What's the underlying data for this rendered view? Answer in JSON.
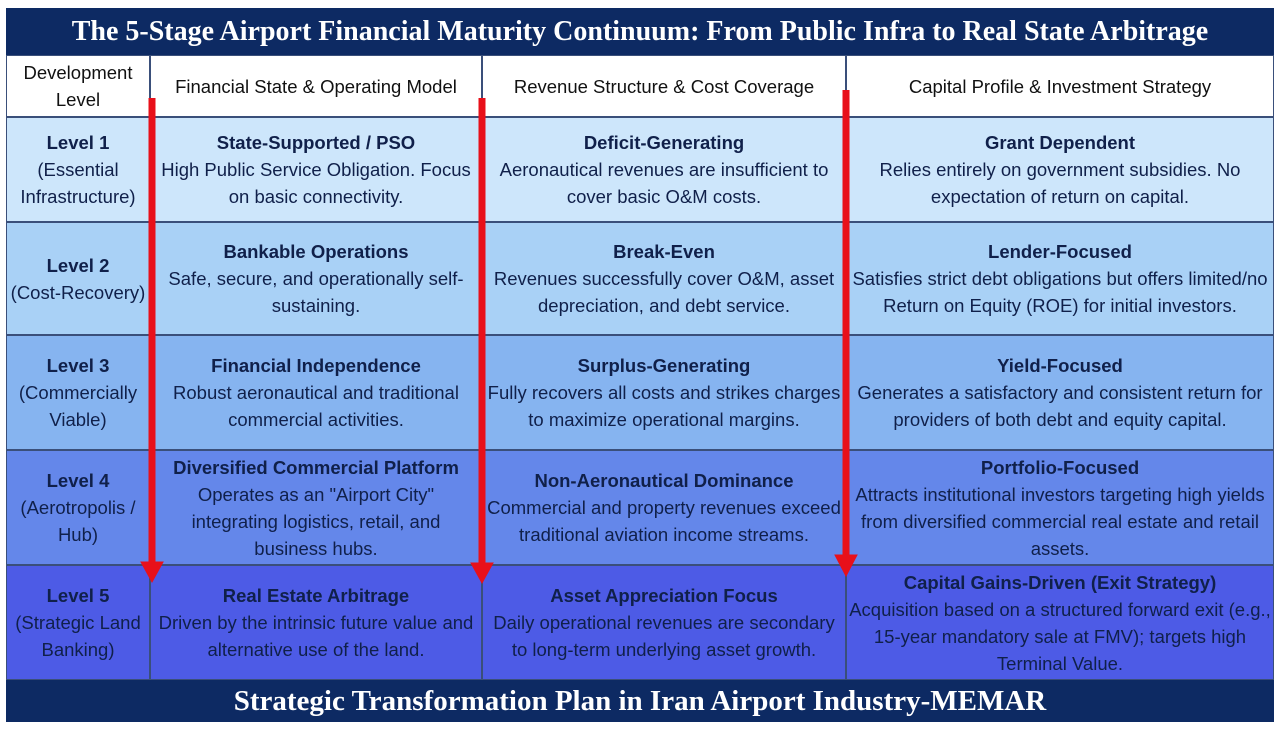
{
  "header": {
    "title": "The 5-Stage Airport Financial Maturity Continuum: From Public Infra to Real State Arbitrage"
  },
  "table": {
    "columns": [
      "Development Level",
      "Financial State & Operating Model",
      "Revenue Structure & Cost Coverage",
      "Capital Profile & Investment Strategy"
    ],
    "rows": [
      {
        "level": "Level 1",
        "stage": "(Essential Infrastructure)",
        "cells": [
          {
            "heading": "State-Supported / PSO",
            "text": "High Public Service Obligation. Focus on basic connectivity."
          },
          {
            "heading": "Deficit-Generating",
            "text": "Aeronautical revenues are insufficient to cover basic O&M costs."
          },
          {
            "heading": "Grant Dependent",
            "text": "Relies entirely on government subsidies. No expectation of return on capital."
          }
        ]
      },
      {
        "level": "Level 2",
        "stage": "(Cost-Recovery)",
        "cells": [
          {
            "heading": "Bankable Operations",
            "text": "Safe, secure, and operationally self-sustaining."
          },
          {
            "heading": "Break-Even",
            "text": "Revenues successfully cover O&M, asset depreciation, and debt service."
          },
          {
            "heading": "Lender-Focused",
            "text": "Satisfies strict debt obligations but offers limited/no Return on Equity (ROE) for initial investors."
          }
        ]
      },
      {
        "level": "Level 3",
        "stage": "(Commercially Viable)",
        "cells": [
          {
            "heading": "Financial Independence",
            "text": "Robust aeronautical and traditional commercial activities."
          },
          {
            "heading": "Surplus-Generating",
            "text": "Fully recovers all costs and strikes charges to maximize operational margins."
          },
          {
            "heading": "Yield-Focused",
            "text": "Generates a satisfactory and consistent return for providers of both debt and equity capital."
          }
        ]
      },
      {
        "level": "Level 4",
        "stage": "(Aerotropolis / Hub)",
        "cells": [
          {
            "heading": "Diversified Commercial Platform",
            "text": "Operates as an \"Airport City\" integrating logistics, retail, and business hubs."
          },
          {
            "heading": "Non-Aeronautical Dominance",
            "text": "Commercial and property revenues exceed traditional aviation income streams."
          },
          {
            "heading": "Portfolio-Focused",
            "text": "Attracts institutional investors targeting high yields from diversified commercial real estate and retail assets."
          }
        ]
      },
      {
        "level": "Level 5",
        "stage": "(Strategic Land Banking)",
        "cells": [
          {
            "heading": "Real Estate Arbitrage",
            "text": "Driven by the intrinsic future value and alternative use of the land."
          },
          {
            "heading": "Asset Appreciation Focus",
            "text": "Daily operational revenues are secondary to long-term underlying asset growth."
          },
          {
            "heading": "Capital Gains-Driven (Exit Strategy)",
            "text": "Acquisition based on a structured forward exit (e.g., 15-year mandatory sale at FMV); targets high Terminal Value."
          }
        ]
      }
    ]
  },
  "footer": {
    "text": "Strategic Transformation Plan in Iran Airport Industry-MEMAR"
  }
}
